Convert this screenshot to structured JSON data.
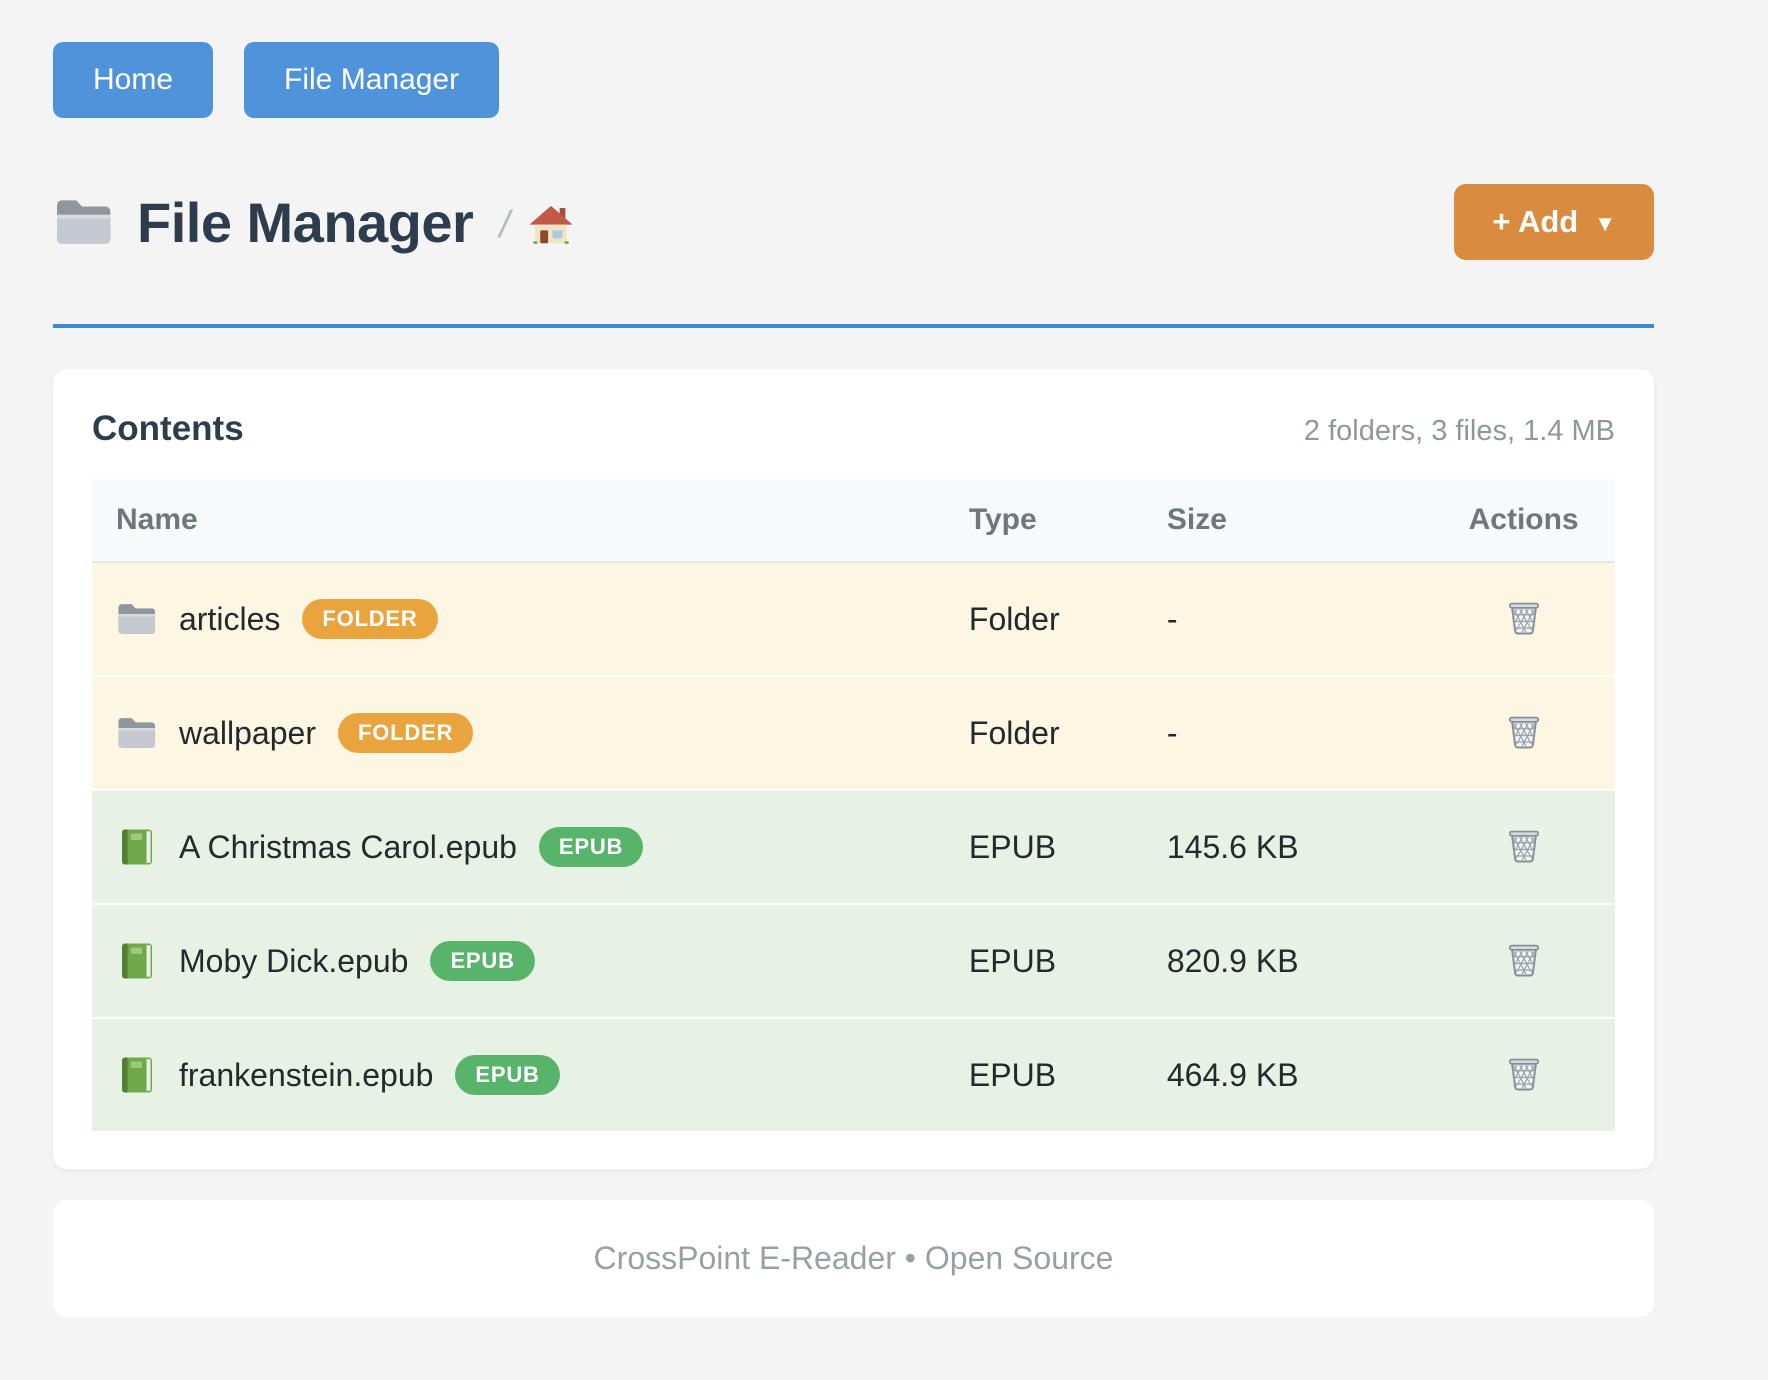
{
  "nav": {
    "buttons": [
      {
        "label": "Home"
      },
      {
        "label": "File Manager"
      }
    ]
  },
  "header": {
    "title": "File Manager",
    "title_icon": "folder-icon",
    "breadcrumb_separator": "/",
    "breadcrumb_home_icon": "house-icon",
    "add_button_label": "+ Add",
    "add_button_caret": "▼"
  },
  "contents_card": {
    "title": "Contents",
    "summary": "2 folders, 3 files, 1.4 MB",
    "columns": [
      "Name",
      "Type",
      "Size",
      "Actions"
    ],
    "rows": [
      {
        "kind": "folder",
        "icon": "folder-icon",
        "name": "articles",
        "badge": "FOLDER",
        "type": "Folder",
        "size": "-"
      },
      {
        "kind": "folder",
        "icon": "folder-icon",
        "name": "wallpaper",
        "badge": "FOLDER",
        "type": "Folder",
        "size": "-"
      },
      {
        "kind": "epub",
        "icon": "book-icon",
        "name": "A Christmas Carol.epub",
        "badge": "EPUB",
        "type": "EPUB",
        "size": "145.6 KB"
      },
      {
        "kind": "epub",
        "icon": "book-icon",
        "name": "Moby Dick.epub",
        "badge": "EPUB",
        "type": "EPUB",
        "size": "820.9 KB"
      },
      {
        "kind": "epub",
        "icon": "book-icon",
        "name": "frankenstein.epub",
        "badge": "EPUB",
        "type": "EPUB",
        "size": "464.9 KB"
      }
    ],
    "actions_icon": "wastebasket-icon"
  },
  "footer": {
    "text": "CrossPoint E-Reader • Open Source"
  },
  "colors": {
    "page_bg": "#f4f4f5",
    "nav_button_blue": "#4f93da",
    "title_text": "#2e3d4d",
    "rule_blue": "#3f87d2",
    "add_button_orange": "#d98c3f",
    "folder_badge_orange": "#e9a43e",
    "epub_badge_green": "#57b46a",
    "folder_row_bg": "#fdf6e3",
    "epub_row_bg": "#e7f1e4",
    "table_header_bg": "#f8f9fa",
    "muted_text": "#8d979c"
  }
}
